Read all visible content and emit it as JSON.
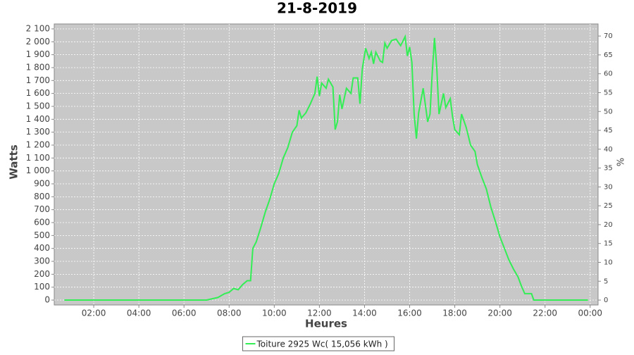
{
  "chart_data": {
    "type": "line",
    "title": "21-8-2019",
    "x_label": "Heures",
    "y_label": "Watts",
    "y2_label": "%",
    "grid": true,
    "background": "#c8c8c8",
    "legend_position": "bottom",
    "x": [
      0.7,
      7.0,
      7.5,
      7.8,
      8.0,
      8.2,
      8.4,
      8.6,
      8.8,
      8.95,
      9.05,
      9.2,
      9.4,
      9.6,
      9.8,
      10.0,
      10.2,
      10.4,
      10.6,
      10.8,
      11.0,
      11.1,
      11.2,
      11.4,
      11.6,
      11.8,
      11.9,
      12.0,
      12.1,
      12.3,
      12.4,
      12.6,
      12.7,
      12.8,
      12.9,
      13.0,
      13.2,
      13.4,
      13.5,
      13.7,
      13.8,
      13.9,
      14.05,
      14.2,
      14.3,
      14.4,
      14.5,
      14.7,
      14.8,
      14.9,
      15.0,
      15.2,
      15.4,
      15.6,
      15.8,
      15.9,
      16.0,
      16.1,
      16.2,
      16.3,
      16.4,
      16.6,
      16.8,
      16.9,
      17.0,
      17.1,
      17.2,
      17.3,
      17.5,
      17.6,
      17.8,
      17.9,
      18.0,
      18.2,
      18.3,
      18.5,
      18.7,
      18.9,
      19.0,
      19.2,
      19.4,
      19.6,
      19.8,
      20.0,
      20.2,
      20.4,
      20.6,
      20.8,
      20.95,
      21.1,
      21.4,
      21.5,
      23.9
    ],
    "series": [
      {
        "name": "Toiture 2925 Wc( 15,056 kWh )",
        "color": "#33ee55",
        "values": [
          0,
          0,
          20,
          50,
          60,
          90,
          80,
          120,
          150,
          150,
          400,
          450,
          560,
          680,
          780,
          900,
          980,
          1100,
          1180,
          1300,
          1350,
          1470,
          1410,
          1450,
          1520,
          1600,
          1730,
          1580,
          1680,
          1640,
          1710,
          1650,
          1320,
          1380,
          1590,
          1480,
          1640,
          1600,
          1720,
          1720,
          1520,
          1790,
          1950,
          1870,
          1920,
          1830,
          1920,
          1850,
          1840,
          1990,
          1950,
          2010,
          2020,
          1970,
          2040,
          1890,
          1960,
          1840,
          1440,
          1250,
          1450,
          1640,
          1380,
          1440,
          1760,
          2030,
          1800,
          1440,
          1600,
          1490,
          1560,
          1420,
          1320,
          1280,
          1440,
          1340,
          1200,
          1150,
          1050,
          950,
          860,
          720,
          610,
          490,
          400,
          310,
          240,
          180,
          110,
          50,
          50,
          0,
          0
        ]
      }
    ],
    "xlim": [
      0.25,
      24.35
    ],
    "xticks": [
      {
        "value": 2,
        "label": "02:00"
      },
      {
        "value": 4,
        "label": "04:00"
      },
      {
        "value": 6,
        "label": "06:00"
      },
      {
        "value": 8,
        "label": "08:00"
      },
      {
        "value": 10,
        "label": "10:00"
      },
      {
        "value": 12,
        "label": "12:00"
      },
      {
        "value": 14,
        "label": "14:00"
      },
      {
        "value": 16,
        "label": "16:00"
      },
      {
        "value": 18,
        "label": "18:00"
      },
      {
        "value": 20,
        "label": "20:00"
      },
      {
        "value": 22,
        "label": "22:00"
      },
      {
        "value": 24,
        "label": "00:00"
      }
    ],
    "ylim": [
      -38,
      2138
    ],
    "yticks": [
      0,
      100,
      200,
      300,
      400,
      500,
      600,
      700,
      800,
      900,
      {
        "value": 1000,
        "label": "1 000"
      },
      {
        "value": 1100,
        "label": "1 100"
      },
      {
        "value": 1200,
        "label": "1 200"
      },
      {
        "value": 1300,
        "label": "1 300"
      },
      {
        "value": 1400,
        "label": "1 400"
      },
      {
        "value": 1500,
        "label": "1 500"
      },
      {
        "value": 1600,
        "label": "1 600"
      },
      {
        "value": 1700,
        "label": "1 700"
      },
      {
        "value": 1800,
        "label": "1 800"
      },
      {
        "value": 1900,
        "label": "1 900"
      },
      {
        "value": 2000,
        "label": "2 000"
      },
      {
        "value": 2100,
        "label": "2 100"
      }
    ],
    "y2lim": [
      -1.3,
      73.2
    ],
    "y2ticks": [
      0,
      5,
      10,
      15,
      20,
      25,
      30,
      35,
      40,
      45,
      50,
      55,
      60,
      65,
      70
    ]
  }
}
